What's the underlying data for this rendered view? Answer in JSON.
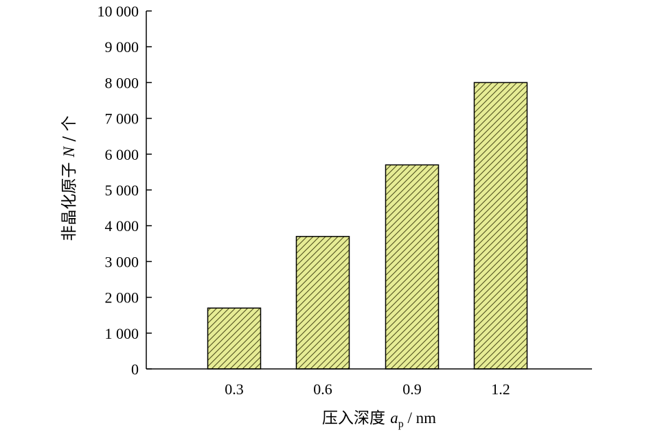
{
  "chart_data": {
    "type": "bar",
    "categories": [
      "0.3",
      "0.6",
      "0.9",
      "1.2"
    ],
    "values": [
      1700,
      3700,
      5700,
      8000
    ],
    "xlabel": {
      "prefix": "压入深度 ",
      "symbol": "a",
      "subscript": "p",
      "unit": " / nm"
    },
    "ylabel": {
      "prefix": "非晶化原子 ",
      "symbol": "N",
      "unit": " / 个"
    },
    "ylim": [
      0,
      10000
    ],
    "yticks": [
      0,
      1000,
      2000,
      3000,
      4000,
      5000,
      6000,
      7000,
      8000,
      9000,
      10000
    ],
    "ytick_labels": [
      "0",
      "1 000",
      "2 000",
      "3 000",
      "4 000",
      "5 000",
      "6 000",
      "7 000",
      "8 000",
      "9 000",
      "10 000"
    ],
    "grid": false,
    "bar_fill": "#e6ec95",
    "bar_hatch": "#4a4a1a",
    "bar_edge": "#000000"
  }
}
